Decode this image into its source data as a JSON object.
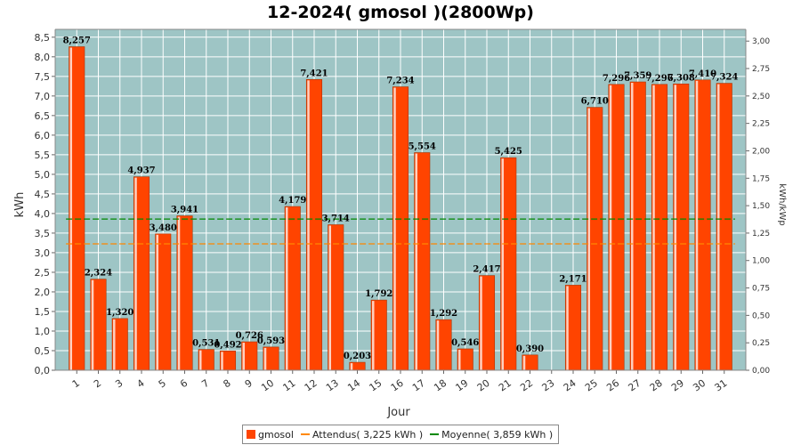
{
  "chart_data": {
    "type": "bar",
    "title": "12-2024( gmosol )(2800Wp)",
    "xlabel": "Jour",
    "ylabel": "kWh",
    "ylabel_right": "kWh/kWp",
    "categories": [
      "1",
      "2",
      "3",
      "4",
      "5",
      "6",
      "7",
      "8",
      "9",
      "10",
      "11",
      "12",
      "13",
      "14",
      "15",
      "16",
      "17",
      "18",
      "19",
      "20",
      "21",
      "22",
      "23",
      "24",
      "25",
      "26",
      "27",
      "28",
      "29",
      "30",
      "31"
    ],
    "series": [
      {
        "name": "gmosol",
        "color": "#ff4400",
        "values": [
          8.257,
          2.324,
          1.32,
          4.937,
          3.48,
          3.941,
          0.531,
          0.492,
          0.726,
          0.593,
          4.179,
          7.421,
          3.714,
          0.203,
          1.792,
          7.234,
          5.554,
          1.292,
          0.546,
          2.417,
          5.425,
          0.39,
          null,
          2.171,
          6.71,
          7.296,
          7.359,
          7.296,
          7.308,
          7.41,
          7.324
        ],
        "labels": [
          "8,257",
          "2,324",
          "1,320",
          "4,937",
          "3,480",
          "3,941",
          "0,531",
          "0,492",
          "0,726",
          "0,593",
          "4,179",
          "7,421",
          "3,714",
          "0,203",
          "1,792",
          "7,234",
          "5,554",
          "1,292",
          "0,546",
          "2,417",
          "5,425",
          "0,390",
          "",
          "2,171",
          "6,710",
          "7,296",
          "7,359",
          "7,296",
          "7,308",
          "7,410",
          "7,324"
        ]
      }
    ],
    "reference_lines": [
      {
        "name": "Attendus( 3,225 kWh )",
        "value": 3.225,
        "color": "#ff8800"
      },
      {
        "name": "Moyenne( 3,859 kWh )",
        "value": 3.859,
        "color": "#008800"
      }
    ],
    "ylim": [
      0,
      8.7
    ],
    "yticks": [
      "0,0",
      "0,5",
      "1,0",
      "1,5",
      "2,0",
      "2,5",
      "3,0",
      "3,5",
      "4,0",
      "4,5",
      "5,0",
      "5,5",
      "6,0",
      "6,5",
      "7,0",
      "7,5",
      "8,0",
      "8,5"
    ],
    "ylim_right": [
      0,
      3.107
    ],
    "yticks_right": [
      "0,00",
      "0,25",
      "0,50",
      "0,75",
      "1,00",
      "1,25",
      "1,50",
      "1,75",
      "2,00",
      "2,25",
      "2,50",
      "2,75",
      "3,00"
    ],
    "grid": true,
    "legend_position": "bottom",
    "plot_background": "#9ec5c5"
  },
  "legend": {
    "items": [
      {
        "label": "gmosol",
        "color": "#ff4400",
        "kind": "bar"
      },
      {
        "label": "Attendus( 3,225 kWh )",
        "color": "#ff8800",
        "kind": "line"
      },
      {
        "label": "Moyenne( 3,859 kWh )",
        "color": "#008800",
        "kind": "line"
      }
    ]
  }
}
